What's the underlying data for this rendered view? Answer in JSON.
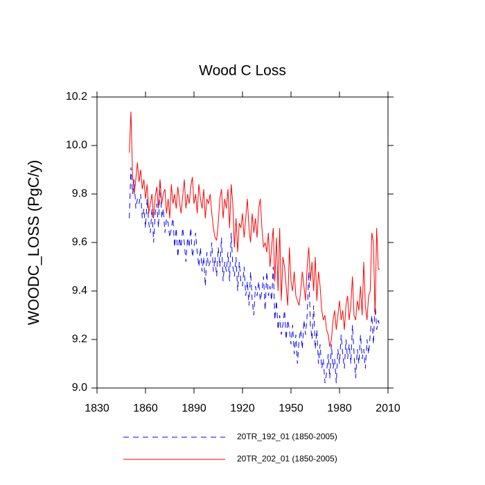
{
  "chart_data": {
    "type": "line",
    "title": "Wood C Loss",
    "ylabel": "WOODC_LOSS  (PgC/y)",
    "xlim": [
      1830,
      2010
    ],
    "xticks": [
      1830,
      1860,
      1890,
      1920,
      1950,
      1980,
      2010
    ],
    "ylim": [
      9,
      10.2
    ],
    "yticks": [
      {
        "value": 9,
        "label": "9.0"
      },
      9.2,
      9.4,
      9.6,
      9.8,
      {
        "value": 10,
        "label": "10.0"
      },
      10.2
    ],
    "x": [
      1850,
      1851,
      1852,
      1853,
      1854,
      1855,
      1856,
      1857,
      1858,
      1859,
      1860,
      1861,
      1862,
      1863,
      1864,
      1865,
      1866,
      1867,
      1868,
      1869,
      1870,
      1871,
      1872,
      1873,
      1874,
      1875,
      1876,
      1877,
      1878,
      1879,
      1880,
      1881,
      1882,
      1883,
      1884,
      1885,
      1886,
      1887,
      1888,
      1889,
      1890,
      1891,
      1892,
      1893,
      1894,
      1895,
      1896,
      1897,
      1898,
      1899,
      1900,
      1901,
      1902,
      1903,
      1904,
      1905,
      1906,
      1907,
      1908,
      1909,
      1910,
      1911,
      1912,
      1913,
      1914,
      1915,
      1916,
      1917,
      1918,
      1919,
      1920,
      1921,
      1922,
      1923,
      1924,
      1925,
      1926,
      1927,
      1928,
      1929,
      1930,
      1931,
      1932,
      1933,
      1934,
      1935,
      1936,
      1937,
      1938,
      1939,
      1940,
      1941,
      1942,
      1943,
      1944,
      1945,
      1946,
      1947,
      1948,
      1949,
      1950,
      1951,
      1952,
      1953,
      1954,
      1955,
      1956,
      1957,
      1958,
      1959,
      1960,
      1961,
      1962,
      1963,
      1964,
      1965,
      1966,
      1967,
      1968,
      1969,
      1970,
      1971,
      1972,
      1973,
      1974,
      1975,
      1976,
      1977,
      1978,
      1979,
      1980,
      1981,
      1982,
      1983,
      1984,
      1985,
      1986,
      1987,
      1988,
      1989,
      1990,
      1991,
      1992,
      1993,
      1994,
      1995,
      1996,
      1997,
      1998,
      1999,
      2000,
      2001,
      2002,
      2003,
      2004,
      2005
    ],
    "series": [
      {
        "name": "20TR_192_01 (1850-2005)",
        "color": "#0000ff",
        "line_style": "dashed",
        "values": [
          9.7,
          9.91,
          9.8,
          9.86,
          9.74,
          9.78,
          9.76,
          9.8,
          9.7,
          9.74,
          9.66,
          9.78,
          9.68,
          9.64,
          9.74,
          9.6,
          9.72,
          9.76,
          9.66,
          9.86,
          9.7,
          9.74,
          9.64,
          9.7,
          9.68,
          9.62,
          9.66,
          9.7,
          9.58,
          9.66,
          9.54,
          9.62,
          9.58,
          9.66,
          9.6,
          9.52,
          9.62,
          9.58,
          9.66,
          9.54,
          9.58,
          9.64,
          9.56,
          9.5,
          9.58,
          9.48,
          9.54,
          9.42,
          9.56,
          9.5,
          9.52,
          9.6,
          9.48,
          9.54,
          9.46,
          9.58,
          9.5,
          9.62,
          9.44,
          9.52,
          9.48,
          9.56,
          9.44,
          9.64,
          9.5,
          9.46,
          9.54,
          9.4,
          9.52,
          9.44,
          9.42,
          9.5,
          9.38,
          9.44,
          9.34,
          9.48,
          9.36,
          9.3,
          9.42,
          9.38,
          9.44,
          9.36,
          9.4,
          9.46,
          9.32,
          9.48,
          9.38,
          9.42,
          9.36,
          9.5,
          9.28,
          9.36,
          9.24,
          9.3,
          9.22,
          9.26,
          9.32,
          9.2,
          9.28,
          9.24,
          9.18,
          9.26,
          9.14,
          9.22,
          9.1,
          9.2,
          9.24,
          9.16,
          9.28,
          9.22,
          9.3,
          9.48,
          9.26,
          9.2,
          9.34,
          9.16,
          9.24,
          9.1,
          9.18,
          9.08,
          9.12,
          9.02,
          9.06,
          9.14,
          9.04,
          9.18,
          9.08,
          9.12,
          9.02,
          9.16,
          9.1,
          9.22,
          9.14,
          9.08,
          9.2,
          9.12,
          9.18,
          9.1,
          9.26,
          9.14,
          9.04,
          9.16,
          9.1,
          9.22,
          9.12,
          9.16,
          9.08,
          9.2,
          9.14,
          9.22,
          9.3,
          9.18,
          9.36,
          9.24,
          9.28,
          9.25
        ]
      },
      {
        "name": "20TR_202_01 (1850-2005)",
        "color": "#ff0000",
        "line_style": "solid",
        "values": [
          9.97,
          10.14,
          9.88,
          9.8,
          9.86,
          9.93,
          9.85,
          9.9,
          9.82,
          9.86,
          9.78,
          9.84,
          9.72,
          9.76,
          9.8,
          9.7,
          9.79,
          9.83,
          9.74,
          9.86,
          9.76,
          9.8,
          9.82,
          9.72,
          9.78,
          9.7,
          9.84,
          9.76,
          9.8,
          9.74,
          9.83,
          9.77,
          9.72,
          9.79,
          9.86,
          9.74,
          9.8,
          9.76,
          9.83,
          9.87,
          9.76,
          9.8,
          9.72,
          9.84,
          9.78,
          9.74,
          9.82,
          9.7,
          9.78,
          9.76,
          9.8,
          9.72,
          9.66,
          9.62,
          9.61,
          9.68,
          9.78,
          9.82,
          9.7,
          9.78,
          9.74,
          9.82,
          9.66,
          9.84,
          9.76,
          9.58,
          9.7,
          9.56,
          9.68,
          9.66,
          9.72,
          9.62,
          9.7,
          9.78,
          9.66,
          9.6,
          9.72,
          9.64,
          9.7,
          9.62,
          9.74,
          9.78,
          9.66,
          9.58,
          9.6,
          9.56,
          9.64,
          9.5,
          9.58,
          9.66,
          9.44,
          9.62,
          9.4,
          9.66,
          9.36,
          9.54,
          9.5,
          9.42,
          9.34,
          9.58,
          9.44,
          9.4,
          9.48,
          9.38,
          9.36,
          9.34,
          9.4,
          9.48,
          9.42,
          9.36,
          9.5,
          9.58,
          9.44,
          9.52,
          9.4,
          9.54,
          9.36,
          9.48,
          9.42,
          9.32,
          9.28,
          9.3,
          9.24,
          9.22,
          9.17,
          9.2,
          9.28,
          9.32,
          9.24,
          9.3,
          9.36,
          9.28,
          9.32,
          9.24,
          9.34,
          9.38,
          9.28,
          9.34,
          9.46,
          9.3,
          9.28,
          9.36,
          9.32,
          9.42,
          9.3,
          9.52,
          9.34,
          9.28,
          9.38,
          9.4,
          9.64,
          9.6,
          9.3,
          9.66,
          9.49,
          9.49
        ]
      }
    ]
  }
}
